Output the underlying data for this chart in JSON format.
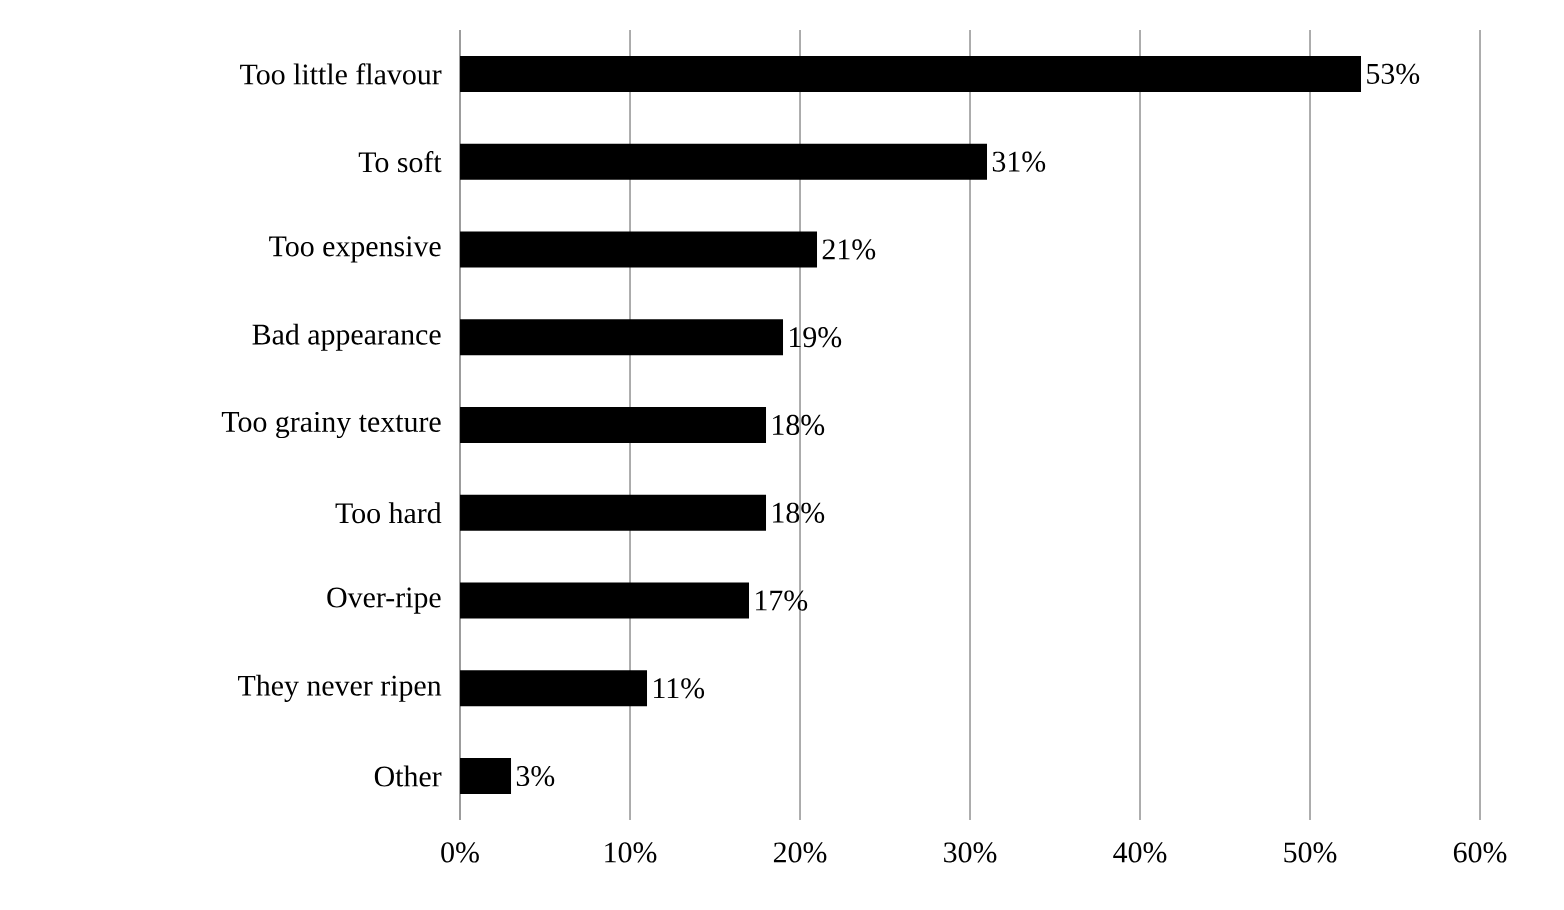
{
  "chart_data": {
    "type": "bar",
    "orientation": "horizontal",
    "categories": [
      "Too little flavour",
      "To soft",
      "Too expensive",
      "Bad appearance",
      "Too grainy texture",
      "Too hard",
      "Over-ripe",
      "They never ripen",
      "Other"
    ],
    "values": [
      53,
      31,
      21,
      19,
      18,
      18,
      17,
      11,
      3
    ],
    "value_labels": [
      "53%",
      "31%",
      "21%",
      "19%",
      "18%",
      "18%",
      "17%",
      "11%",
      "3%"
    ],
    "color": "#000000",
    "xlim": [
      0,
      60
    ],
    "xticks": [
      {
        "value": 0,
        "label": "0%"
      },
      {
        "value": 10,
        "label": "10%"
      },
      {
        "value": 20,
        "label": "20%"
      },
      {
        "value": 30,
        "label": "30%"
      },
      {
        "value": 40,
        "label": "40%"
      },
      {
        "value": 50,
        "label": "50%"
      },
      {
        "value": 60,
        "label": "60%"
      }
    ],
    "grid": "x"
  }
}
